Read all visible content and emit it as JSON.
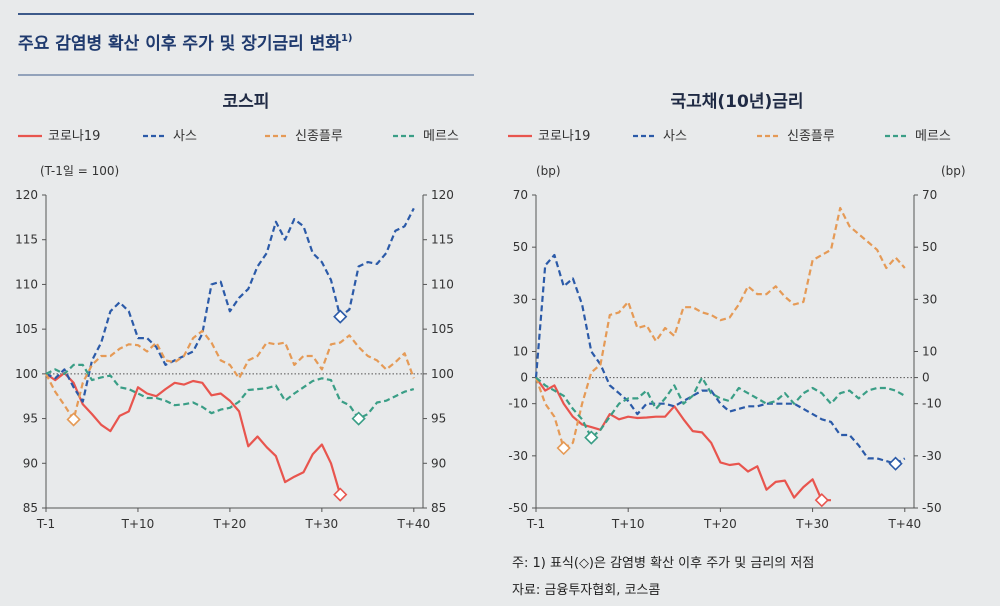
{
  "figure": {
    "title": "주요 감염병 확산 이후 주가 및 장기금리 변화",
    "title_sup": "1)",
    "notes": [
      "주: 1) 표식(◇)은 감염병 확산 이후 주가 및 금리의 저점",
      "자료: 금융투자협회, 코스콤"
    ],
    "colors": {
      "rule": "#3d5a8a",
      "background": "#e8eaeb"
    }
  },
  "chart_data": [
    {
      "type": "line",
      "title": "코스피",
      "unit_left": "(T-1일 = 100)",
      "unit_right": "",
      "x_ticks": [
        "T-1",
        "T+10",
        "T+20",
        "T+30",
        "T+40"
      ],
      "x_tick_values": [
        0,
        10,
        20,
        30,
        40
      ],
      "xlim": [
        0,
        41
      ],
      "ylim": [
        85,
        120
      ],
      "y_ticks": [
        85,
        90,
        95,
        100,
        105,
        110,
        115,
        120
      ],
      "y_tick_labels_left": [
        "85",
        "90",
        "95",
        "100",
        "105",
        "110",
        "115",
        "120"
      ],
      "y_tick_labels_right": [
        "85",
        "90",
        "95",
        "100",
        "105",
        "110",
        "115",
        "120"
      ],
      "reference_line": 100,
      "series": [
        {
          "name": "코로나19",
          "color": "#e8554e",
          "style": "solid",
          "x": [
            0,
            1,
            2,
            3,
            4,
            5,
            6,
            7,
            8,
            9,
            10,
            11,
            12,
            13,
            14,
            15,
            16,
            17,
            18,
            19,
            20,
            21,
            22,
            23,
            24,
            25,
            26,
            27,
            28,
            29,
            30,
            31,
            32
          ],
          "values": [
            100,
            99.3,
            100.1,
            99,
            96.6,
            95.5,
            94.3,
            93.6,
            95.3,
            95.8,
            98.5,
            97.8,
            97.5,
            98.3,
            99,
            98.8,
            99.2,
            99,
            97.6,
            97.8,
            97,
            95.8,
            91.9,
            93,
            91.8,
            90.8,
            87.9,
            88.5,
            89,
            91,
            92.1,
            90,
            86.5
          ],
          "min_index": 32
        },
        {
          "name": "사스",
          "color": "#2b5aa8",
          "style": "dashed",
          "x": [
            0,
            1,
            2,
            3,
            4,
            5,
            6,
            7,
            8,
            9,
            10,
            11,
            12,
            13,
            14,
            15,
            16,
            17,
            18,
            19,
            20,
            21,
            22,
            23,
            24,
            25,
            26,
            27,
            28,
            29,
            30,
            31,
            32,
            33,
            34,
            35,
            36,
            37,
            38,
            39,
            40
          ],
          "values": [
            100,
            99.5,
            100.5,
            98.5,
            96.9,
            101.5,
            103.5,
            107,
            108,
            107,
            104,
            104,
            103,
            101,
            101.5,
            102,
            102.5,
            104.5,
            110,
            110.3,
            107,
            108.5,
            109.5,
            112,
            113.5,
            117,
            115,
            117.3,
            116.5,
            113.5,
            112.5,
            110.5,
            106.4,
            107.2,
            112,
            112.5,
            112.3,
            113.5,
            116,
            116.5,
            118.5
          ],
          "min_index": 32
        },
        {
          "name": "신종플루",
          "color": "#e59a56",
          "style": "dashed",
          "x": [
            0,
            1,
            2,
            3,
            4,
            5,
            6,
            7,
            8,
            9,
            10,
            11,
            12,
            13,
            14,
            15,
            16,
            17,
            18,
            19,
            20,
            21,
            22,
            23,
            24,
            25,
            26,
            27,
            28,
            29,
            30,
            31,
            32,
            33,
            34,
            35,
            36,
            37,
            38,
            39,
            40
          ],
          "values": [
            100,
            98,
            96.5,
            94.9,
            99,
            101,
            102,
            102,
            102.8,
            103.3,
            103.2,
            102.5,
            103.5,
            101.5,
            101.3,
            102,
            104,
            104.8,
            103.5,
            101.5,
            101,
            99.5,
            101.5,
            102,
            103.5,
            103.3,
            103.5,
            101,
            102,
            102,
            100.5,
            103.3,
            103.5,
            104.3,
            103,
            102,
            101.5,
            100.5,
            101.3,
            102.3,
            99.5
          ],
          "min_index": 3
        },
        {
          "name": "메르스",
          "color": "#3a9e86",
          "style": "dashed",
          "x": [
            0,
            1,
            2,
            3,
            4,
            5,
            6,
            7,
            8,
            9,
            10,
            11,
            12,
            13,
            14,
            15,
            16,
            17,
            18,
            19,
            20,
            21,
            22,
            23,
            24,
            25,
            26,
            27,
            28,
            29,
            30,
            31,
            32,
            33,
            34,
            35,
            36,
            37,
            38,
            39,
            40
          ],
          "values": [
            100,
            100.5,
            100,
            101,
            101,
            99.3,
            99.6,
            99.8,
            98.5,
            98.3,
            97.8,
            97.3,
            97.3,
            97,
            96.5,
            96.6,
            96.8,
            96.3,
            95.6,
            96,
            96.2,
            96.9,
            98.2,
            98.3,
            98.4,
            98.7,
            97,
            97.8,
            98.5,
            99.2,
            99.5,
            99.3,
            97,
            96.5,
            95,
            95.5,
            96.8,
            97,
            97.5,
            98,
            98.3
          ],
          "min_index": 34
        }
      ]
    },
    {
      "type": "line",
      "title": "국고채(10년)금리",
      "unit_left": "(bp)",
      "unit_right": "(bp)",
      "x_ticks": [
        "T-1",
        "T+10",
        "T+20",
        "T+30",
        "T+40"
      ],
      "x_tick_values": [
        0,
        10,
        20,
        30,
        40
      ],
      "xlim": [
        0,
        41
      ],
      "ylim": [
        -50,
        70
      ],
      "y_ticks": [
        -50,
        -30,
        -10,
        0,
        10,
        30,
        50,
        70
      ],
      "y_tick_labels_left": [
        "-50",
        "-30",
        "-10",
        "0",
        "10",
        "30",
        "50",
        "70"
      ],
      "y_tick_labels_right": [
        "-50",
        "-30",
        "-10",
        "0",
        "10",
        "30",
        "50",
        "70"
      ],
      "reference_line": 0,
      "series": [
        {
          "name": "코로나19",
          "color": "#e8554e",
          "style": "solid",
          "x": [
            0,
            1,
            2,
            3,
            4,
            5,
            6,
            7,
            8,
            9,
            10,
            11,
            12,
            13,
            14,
            15,
            16,
            17,
            18,
            19,
            20,
            21,
            22,
            23,
            24,
            25,
            26,
            27,
            28,
            29,
            30,
            31,
            32
          ],
          "values": [
            0,
            -5,
            -3,
            -10,
            -15,
            -18,
            -19,
            -20,
            -14,
            -16,
            -15,
            -15.5,
            -15.3,
            -15,
            -15,
            -11,
            -16,
            -20.5,
            -21,
            -25,
            -32.5,
            -33.5,
            -33,
            -36,
            -34,
            -43,
            -40,
            -39.5,
            -46,
            -42,
            -39,
            -47,
            -47
          ],
          "min_index": 31
        },
        {
          "name": "사스",
          "color": "#2b5aa8",
          "style": "dashed",
          "x": [
            0,
            1,
            2,
            3,
            4,
            5,
            6,
            7,
            8,
            9,
            10,
            11,
            12,
            13,
            14,
            15,
            16,
            17,
            18,
            19,
            20,
            21,
            22,
            23,
            24,
            25,
            26,
            27,
            28,
            29,
            30,
            31,
            32,
            33,
            34,
            35,
            36,
            37,
            38,
            39,
            40
          ],
          "values": [
            0,
            43,
            47,
            35,
            38,
            28,
            10,
            5,
            -3,
            -6,
            -9,
            -14,
            -10,
            -10,
            -10,
            -11,
            -9,
            -7,
            -5,
            -5,
            -10,
            -13,
            -12,
            -11,
            -11,
            -10,
            -10,
            -10,
            -10,
            -12,
            -14,
            -16,
            -17,
            -22,
            -22,
            -26,
            -31,
            -31,
            -32,
            -33,
            -31
          ],
          "min_index": 39
        },
        {
          "name": "신종플루",
          "color": "#e59a56",
          "style": "dashed",
          "x": [
            0,
            1,
            2,
            3,
            4,
            5,
            6,
            7,
            8,
            9,
            10,
            11,
            12,
            13,
            14,
            15,
            16,
            17,
            18,
            19,
            20,
            21,
            22,
            23,
            24,
            25,
            26,
            27,
            28,
            29,
            30,
            31,
            32,
            33,
            34,
            35,
            36,
            37,
            38,
            39,
            40
          ],
          "values": [
            0,
            -10,
            -15,
            -27,
            -25,
            -10,
            2,
            5,
            24,
            25,
            29,
            19,
            20,
            14,
            19,
            16,
            27,
            27,
            25,
            24,
            22,
            23,
            28,
            35,
            32,
            32,
            35,
            31,
            28,
            29,
            45,
            47,
            49,
            65,
            58,
            55,
            52,
            49,
            42,
            46,
            42
          ],
          "min_index": 3
        },
        {
          "name": "메르스",
          "color": "#3a9e86",
          "style": "dashed",
          "x": [
            0,
            1,
            2,
            3,
            4,
            5,
            6,
            7,
            8,
            9,
            10,
            11,
            12,
            13,
            14,
            15,
            16,
            17,
            18,
            19,
            20,
            21,
            22,
            23,
            24,
            25,
            26,
            27,
            28,
            29,
            30,
            31,
            32,
            33,
            34,
            35,
            36,
            37,
            38,
            39,
            40
          ],
          "values": [
            0,
            -3,
            -5,
            -7,
            -12,
            -16,
            -23,
            -20,
            -15,
            -10,
            -8,
            -8,
            -5,
            -12,
            -8,
            -3,
            -10,
            -7,
            0,
            -6,
            -8,
            -9,
            -4,
            -6,
            -8,
            -10,
            -9,
            -6,
            -10,
            -6,
            -4,
            -6,
            -10,
            -6,
            -5,
            -8,
            -5,
            -4,
            -4,
            -5,
            -7
          ],
          "min_index": 6
        }
      ]
    }
  ]
}
